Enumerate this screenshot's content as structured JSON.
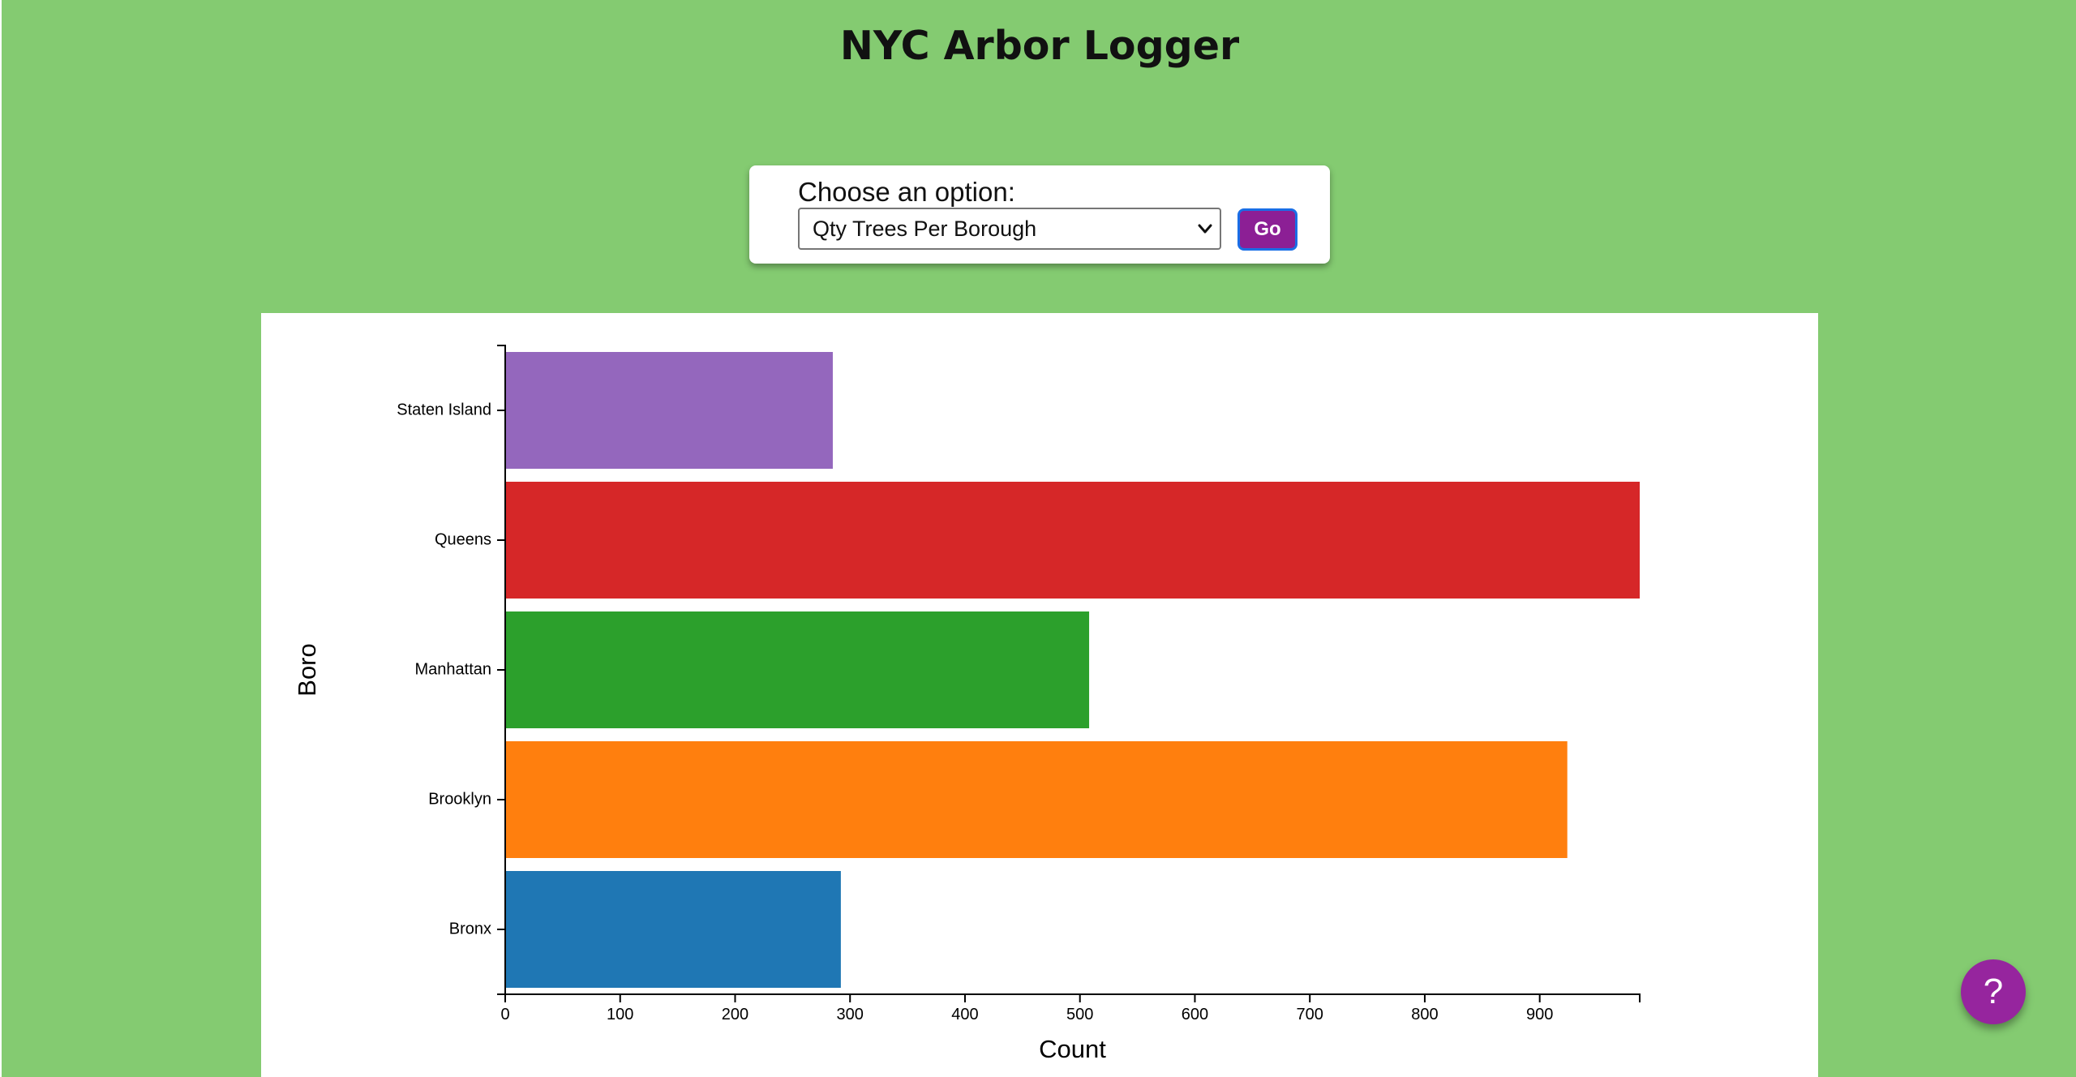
{
  "app": {
    "title": "NYC Arbor Logger"
  },
  "controls": {
    "label": "Choose an option:",
    "selected_option": "Qty Trees Per Borough",
    "go_label": "Go"
  },
  "help": {
    "label": "?"
  },
  "colors": {
    "background": "#84cb71",
    "go_button": "#8c1f95",
    "help_button": "#96259e"
  },
  "chart_data": {
    "type": "bar",
    "orientation": "horizontal",
    "categories": [
      "Staten Island",
      "Queens",
      "Manhattan",
      "Brooklyn",
      "Bronx"
    ],
    "values": [
      285,
      987,
      508,
      924,
      292
    ],
    "colors": [
      "#9467bd",
      "#d62728",
      "#2ca02c",
      "#ff7f0e",
      "#1f77b4"
    ],
    "xlabel": "Count",
    "ylabel": "Boro",
    "xlim": [
      0,
      987
    ],
    "xticks": [
      0,
      100,
      200,
      300,
      400,
      500,
      600,
      700,
      800,
      900
    ],
    "grid": false
  }
}
